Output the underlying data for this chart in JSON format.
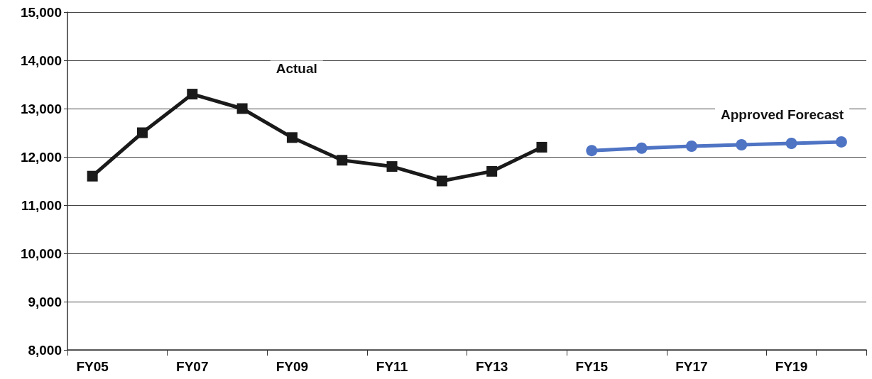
{
  "chart_data": {
    "type": "line",
    "categories": [
      "FY05",
      null,
      "FY07",
      null,
      "FY09",
      null,
      "FY11",
      null,
      "FY13",
      null,
      "FY15",
      null,
      "FY17",
      null,
      "FY19",
      null
    ],
    "series": [
      {
        "name": "Actual",
        "color": "#1a1a1a",
        "marker": "square",
        "values": [
          11600,
          12500,
          13300,
          13000,
          12400,
          11930,
          11800,
          11500,
          11700,
          12200,
          null,
          null,
          null,
          null,
          null,
          null
        ]
      },
      {
        "name": "Approved Forecast",
        "color": "#4f74c4",
        "marker": "circle",
        "values": [
          null,
          null,
          null,
          null,
          null,
          null,
          null,
          null,
          null,
          null,
          12130,
          12180,
          12220,
          12250,
          12280,
          12310
        ]
      }
    ],
    "ylim": [
      8000,
      15000
    ],
    "yticks": [
      {
        "value": 8000,
        "label": "8,000"
      },
      {
        "value": 9000,
        "label": "9,000"
      },
      {
        "value": 10000,
        "label": "10,000"
      },
      {
        "value": 11000,
        "label": "11,000"
      },
      {
        "value": 12000,
        "label": "12,000"
      },
      {
        "value": 13000,
        "label": "13,000"
      },
      {
        "value": 14000,
        "label": "14,000"
      },
      {
        "value": 15000,
        "label": "15,000"
      }
    ],
    "grid": "y",
    "legend": false,
    "line_style": "solid"
  }
}
